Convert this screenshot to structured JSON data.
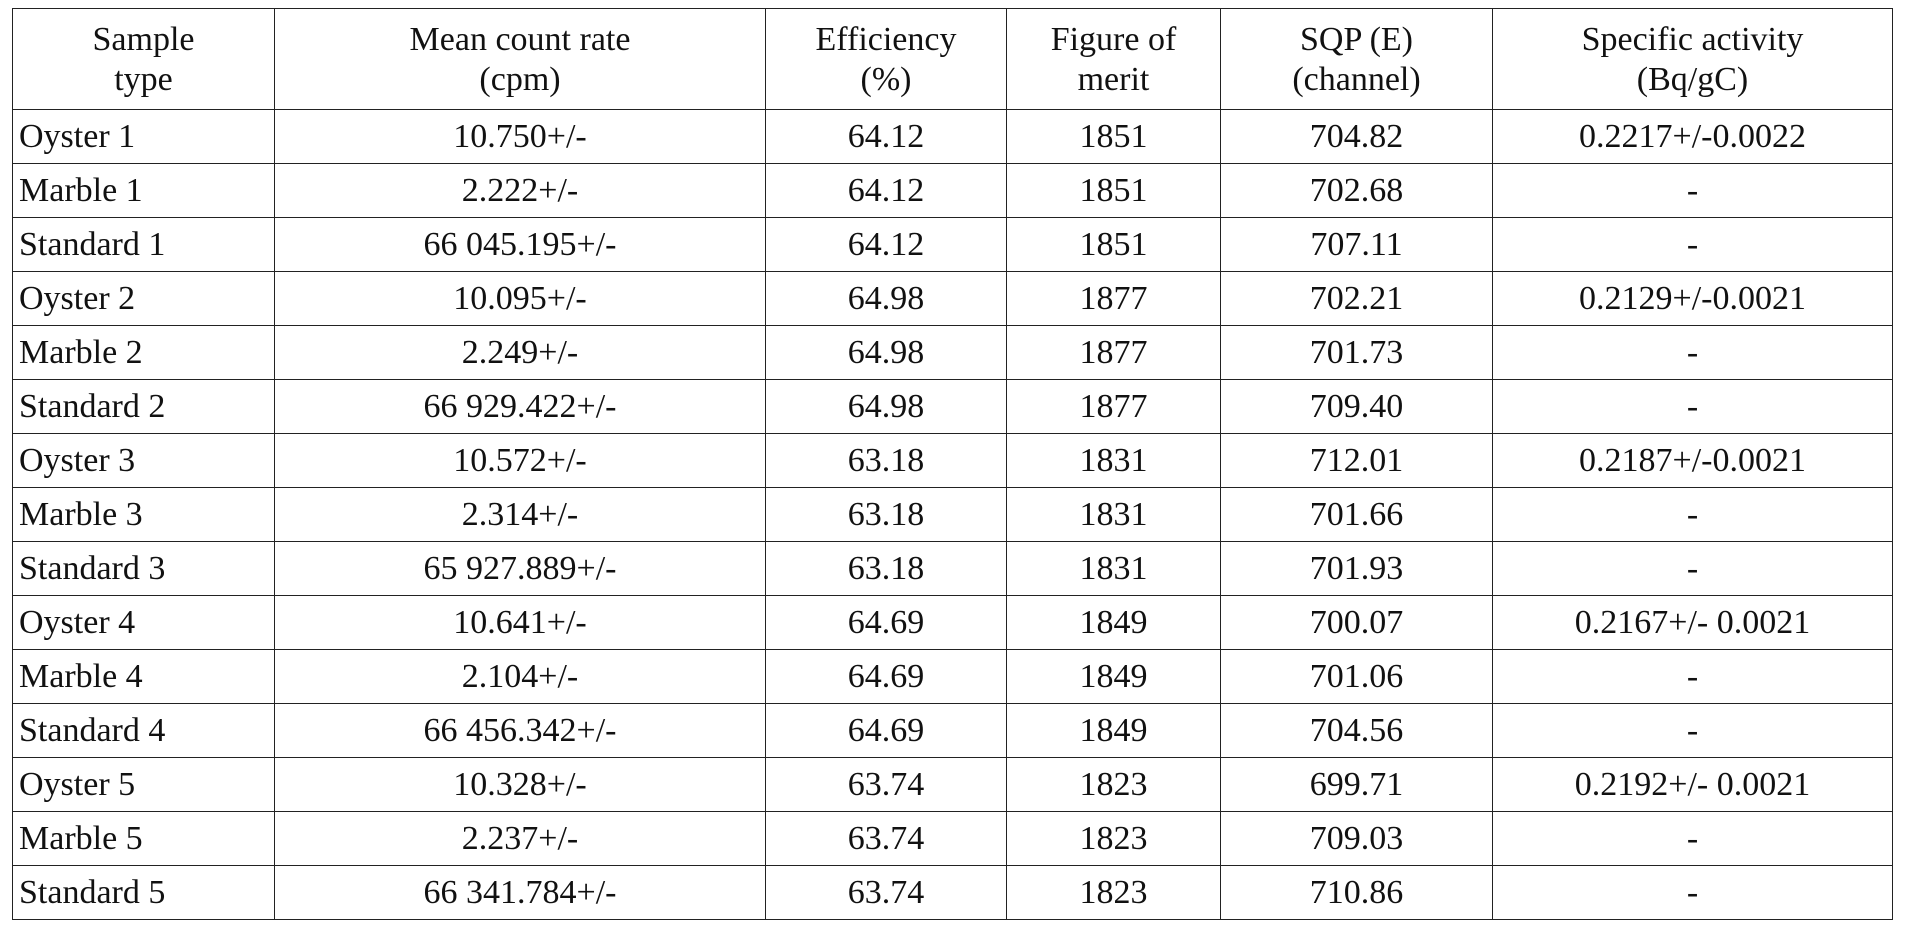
{
  "table": {
    "headers": [
      {
        "line1": "Sample",
        "line2": "type"
      },
      {
        "line1": "Mean count rate",
        "line2": "(cpm)"
      },
      {
        "line1": "Efficiency",
        "line2": "(%)"
      },
      {
        "line1": "Figure of",
        "line2": "merit"
      },
      {
        "line1": "SQP (E)",
        "line2": "(channel)"
      },
      {
        "line1": "Specific activity",
        "line2": "(Bq/gC)"
      }
    ],
    "rows": [
      [
        "Oyster 1",
        "10.750+/-",
        "64.12",
        "1851",
        "704.82",
        "0.2217+/-0.0022"
      ],
      [
        "Marble 1",
        "2.222+/-",
        "64.12",
        "1851",
        "702.68",
        "-"
      ],
      [
        "Standard 1",
        "66 045.195+/-",
        "64.12",
        "1851",
        "707.11",
        "-"
      ],
      [
        "Oyster 2",
        "10.095+/-",
        "64.98",
        "1877",
        "702.21",
        "0.2129+/-0.0021"
      ],
      [
        "Marble 2",
        "2.249+/-",
        "64.98",
        "1877",
        "701.73",
        "-"
      ],
      [
        "Standard 2",
        "66 929.422+/-",
        "64.98",
        "1877",
        "709.40",
        "-"
      ],
      [
        "Oyster 3",
        "10.572+/-",
        "63.18",
        "1831",
        "712.01",
        "0.2187+/-0.0021"
      ],
      [
        "Marble 3",
        "2.314+/-",
        "63.18",
        "1831",
        "701.66",
        "-"
      ],
      [
        "Standard 3",
        "65 927.889+/-",
        "63.18",
        "1831",
        "701.93",
        "-"
      ],
      [
        "Oyster 4",
        "10.641+/-",
        "64.69",
        "1849",
        "700.07",
        "0.2167+/- 0.0021"
      ],
      [
        "Marble 4",
        "2.104+/-",
        "64.69",
        "1849",
        "701.06",
        "-"
      ],
      [
        "Standard 4",
        "66 456.342+/-",
        "64.69",
        "1849",
        "704.56",
        "-"
      ],
      [
        "Oyster 5",
        "10.328+/-",
        "63.74",
        "1823",
        "699.71",
        "0.2192+/- 0.0021"
      ],
      [
        "Marble 5",
        "2.237+/-",
        "63.74",
        "1823",
        "709.03",
        "-"
      ],
      [
        "Standard 5",
        "66 341.784+/-",
        "63.74",
        "1823",
        "710.86",
        "-"
      ]
    ]
  }
}
